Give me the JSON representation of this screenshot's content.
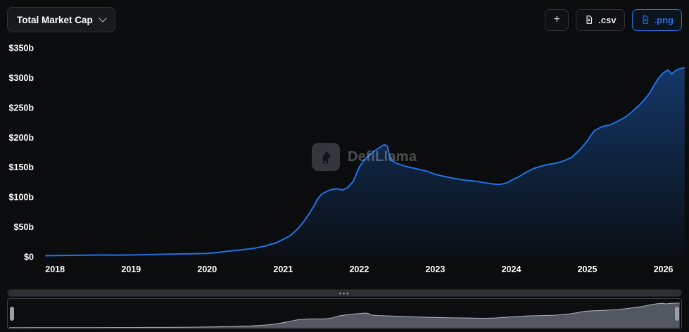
{
  "colors": {
    "background": "#0a0c0e",
    "panel": "#17191d",
    "border": "#2f3338",
    "accent": "#2172e5",
    "text": "#ffffff"
  },
  "toolbar": {
    "metric_selector_label": "Total Market Cap",
    "add_button_label": "+",
    "csv_button_label": ".csv",
    "png_button_label": ".png"
  },
  "watermark": {
    "label": "DefiLlama"
  },
  "scrollbar": {
    "handle_glyph": "•••"
  },
  "chart_data": {
    "type": "area",
    "title": "Total Market Cap",
    "series_name": "Total Market Cap",
    "unit": "USD billions",
    "x_unit": "decimal year",
    "grid": false,
    "legend_position": "none",
    "line_color": "#2172e5",
    "ylim": [
      0,
      350
    ],
    "x_domain": [
      2017.85,
      2026.3
    ],
    "y_ticks": [
      {
        "value": 350,
        "label": "$350b"
      },
      {
        "value": 300,
        "label": "$300b"
      },
      {
        "value": 250,
        "label": "$250b"
      },
      {
        "value": 200,
        "label": "$200b"
      },
      {
        "value": 150,
        "label": "$150b"
      },
      {
        "value": 100,
        "label": "$100b"
      },
      {
        "value": 50,
        "label": "$50b"
      },
      {
        "value": 0,
        "label": "$0"
      }
    ],
    "x_ticks": [
      {
        "value": 2018,
        "label": "2018"
      },
      {
        "value": 2019,
        "label": "2019"
      },
      {
        "value": 2020,
        "label": "2020"
      },
      {
        "value": 2021,
        "label": "2021"
      },
      {
        "value": 2022,
        "label": "2022"
      },
      {
        "value": 2023,
        "label": "2023"
      },
      {
        "value": 2024,
        "label": "2024"
      },
      {
        "value": 2025,
        "label": "2025"
      },
      {
        "value": 2026,
        "label": "2026"
      }
    ],
    "points": [
      [
        2017.87,
        1.8
      ],
      [
        2018.0,
        2.1
      ],
      [
        2018.2,
        2.4
      ],
      [
        2018.4,
        2.7
      ],
      [
        2018.6,
        2.9
      ],
      [
        2018.8,
        2.8
      ],
      [
        2019.0,
        2.9
      ],
      [
        2019.2,
        3.5
      ],
      [
        2019.4,
        4.1
      ],
      [
        2019.6,
        4.6
      ],
      [
        2019.8,
        4.9
      ],
      [
        2020.0,
        5.6
      ],
      [
        2020.15,
        7.2
      ],
      [
        2020.3,
        9.8
      ],
      [
        2020.45,
        11.6
      ],
      [
        2020.6,
        13.8
      ],
      [
        2020.75,
        17.5
      ],
      [
        2020.9,
        23.0
      ],
      [
        2021.0,
        29.0
      ],
      [
        2021.1,
        36.0
      ],
      [
        2021.2,
        48.0
      ],
      [
        2021.3,
        64.0
      ],
      [
        2021.4,
        84.0
      ],
      [
        2021.45,
        96.0
      ],
      [
        2021.5,
        104.0
      ],
      [
        2021.55,
        108.0
      ],
      [
        2021.62,
        112.0
      ],
      [
        2021.7,
        114.0
      ],
      [
        2021.78,
        112.0
      ],
      [
        2021.85,
        116.0
      ],
      [
        2021.92,
        126.0
      ],
      [
        2022.0,
        150.0
      ],
      [
        2022.05,
        159.0
      ],
      [
        2022.1,
        166.0
      ],
      [
        2022.15,
        172.0
      ],
      [
        2022.2,
        177.0
      ],
      [
        2022.27,
        183.0
      ],
      [
        2022.33,
        188.0
      ],
      [
        2022.37,
        185.0
      ],
      [
        2022.4,
        168.0
      ],
      [
        2022.44,
        160.0
      ],
      [
        2022.5,
        156.0
      ],
      [
        2022.6,
        152.0
      ],
      [
        2022.7,
        149.0
      ],
      [
        2022.8,
        146.0
      ],
      [
        2022.9,
        143.0
      ],
      [
        2023.0,
        138.0
      ],
      [
        2023.1,
        135.0
      ],
      [
        2023.25,
        131.0
      ],
      [
        2023.4,
        128.0
      ],
      [
        2023.5,
        127.0
      ],
      [
        2023.65,
        124.0
      ],
      [
        2023.75,
        122.0
      ],
      [
        2023.85,
        121.0
      ],
      [
        2023.95,
        124.0
      ],
      [
        2024.0,
        128.0
      ],
      [
        2024.1,
        134.0
      ],
      [
        2024.2,
        142.0
      ],
      [
        2024.3,
        148.0
      ],
      [
        2024.4,
        152.0
      ],
      [
        2024.5,
        155.0
      ],
      [
        2024.6,
        157.0
      ],
      [
        2024.7,
        161.0
      ],
      [
        2024.8,
        167.0
      ],
      [
        2024.9,
        179.0
      ],
      [
        2025.0,
        194.0
      ],
      [
        2025.05,
        204.0
      ],
      [
        2025.1,
        212.0
      ],
      [
        2025.2,
        218.0
      ],
      [
        2025.3,
        221.0
      ],
      [
        2025.4,
        227.0
      ],
      [
        2025.5,
        234.0
      ],
      [
        2025.6,
        244.0
      ],
      [
        2025.7,
        256.0
      ],
      [
        2025.77,
        266.0
      ],
      [
        2025.83,
        276.0
      ],
      [
        2025.88,
        288.0
      ],
      [
        2025.93,
        298.0
      ],
      [
        2026.0,
        308.0
      ],
      [
        2026.06,
        313.0
      ],
      [
        2026.11,
        306.0
      ],
      [
        2026.16,
        312.0
      ],
      [
        2026.22,
        315.0
      ],
      [
        2026.28,
        317.0
      ]
    ]
  },
  "brush": {
    "fill": "#99a2b4",
    "stroke": "#c6ccd8",
    "handle_color": "#9aa0a9"
  }
}
